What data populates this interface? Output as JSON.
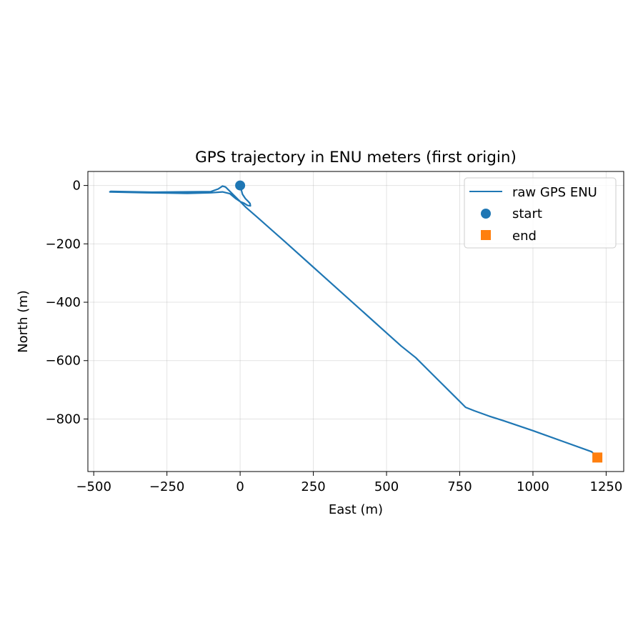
{
  "chart_data": {
    "type": "line",
    "title": "GPS trajectory in ENU meters (first origin)",
    "xlabel": "East (m)",
    "ylabel": "North (m)",
    "xlim": [
      -520,
      1310
    ],
    "ylim": [
      -980,
      48
    ],
    "xticks": [
      -500,
      -250,
      0,
      250,
      500,
      750,
      1000,
      1250
    ],
    "xtick_labels": [
      "−500",
      "−250",
      "0",
      "250",
      "500",
      "750",
      "1000",
      "1250"
    ],
    "yticks": [
      0,
      -200,
      -400,
      -600,
      -800
    ],
    "ytick_labels": [
      "0",
      "−200",
      "−400",
      "−600",
      "−800"
    ],
    "grid": true,
    "legend_position": "top-right",
    "series": [
      {
        "name": "raw GPS ENU",
        "kind": "line",
        "color": "#1f77b4",
        "x": [
          0,
          8,
          18,
          28,
          34,
          35,
          25,
          12,
          0,
          -15,
          -35,
          -60,
          -100,
          -180,
          -250,
          -320,
          -445,
          -442,
          -300,
          -200,
          -100,
          -75,
          -60,
          -50,
          -40,
          -25,
          -5,
          20,
          60,
          150,
          250,
          350,
          450,
          500,
          550,
          600,
          650,
          700,
          750,
          770,
          800,
          850,
          900,
          1000,
          1100,
          1200,
          1218
        ],
        "y": [
          0,
          -30,
          -45,
          -55,
          -62,
          -70,
          -68,
          -60,
          -55,
          -45,
          -28,
          -22,
          -25,
          -27,
          -26,
          -25,
          -22,
          -20,
          -23,
          -22,
          -21,
          -12,
          -2,
          -5,
          -15,
          -30,
          -50,
          -75,
          -110,
          -190,
          -280,
          -370,
          -460,
          -505,
          -550,
          -590,
          -640,
          -690,
          -740,
          -760,
          -772,
          -790,
          -806,
          -840,
          -876,
          -912,
          -928
        ]
      },
      {
        "name": "start",
        "kind": "scatter",
        "marker": "circle",
        "color": "#1f77b4",
        "x": [
          0
        ],
        "y": [
          0
        ]
      },
      {
        "name": "end",
        "kind": "scatter",
        "marker": "square",
        "color": "#ff7f0e",
        "x": [
          1220
        ],
        "y": [
          -932
        ]
      }
    ]
  }
}
